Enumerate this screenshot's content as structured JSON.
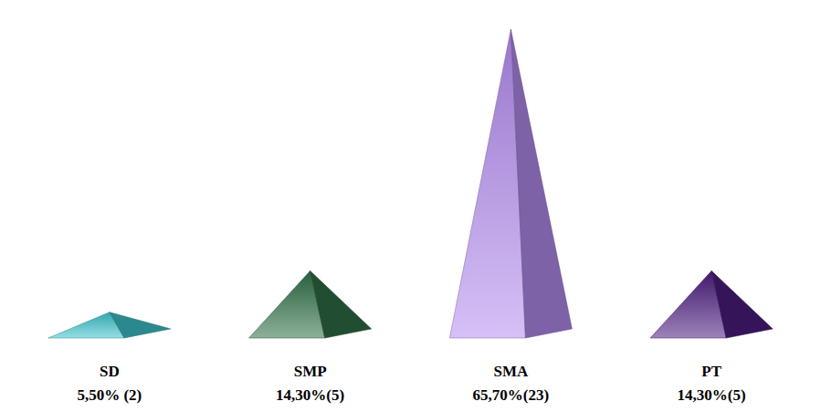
{
  "chart_data": {
    "type": "pyramid",
    "categories": [
      "SD",
      "SMP",
      "SMA",
      "PT"
    ],
    "values": [
      5.5,
      14.3,
      65.7,
      14.3
    ],
    "value_labels": [
      "5,50% (2)",
      "14,30%(5)",
      "65,70%(23)",
      "14,30%(5)"
    ],
    "colors": [
      "#3cc3cc",
      "#2f7048",
      "#b48cf0",
      "#4c1c80"
    ],
    "ylim": [
      0,
      70
    ],
    "data_labels": true,
    "tick_labels": false,
    "grid": false
  }
}
